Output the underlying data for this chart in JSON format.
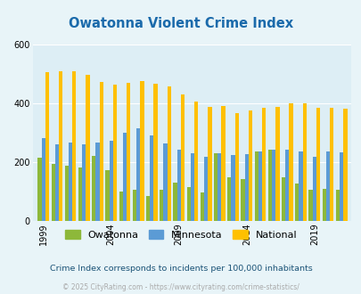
{
  "title": "Owatonna Violent Crime Index",
  "title_color": "#1a6aab",
  "subtitle": "Crime Index corresponds to incidents per 100,000 inhabitants",
  "footer": "© 2025 CityRating.com - https://www.cityrating.com/crime-statistics/",
  "years": [
    1999,
    2000,
    2001,
    2002,
    2003,
    2004,
    2005,
    2006,
    2007,
    2008,
    2009,
    2010,
    2011,
    2012,
    2013,
    2014,
    2015,
    2016,
    2017,
    2018,
    2019,
    2020,
    2021
  ],
  "owatonna": [
    215,
    192,
    185,
    180,
    220,
    170,
    100,
    105,
    83,
    105,
    130,
    115,
    95,
    230,
    148,
    140,
    235,
    240,
    148,
    127,
    105,
    108,
    105
  ],
  "minnesota": [
    280,
    260,
    265,
    260,
    265,
    270,
    300,
    315,
    290,
    263,
    242,
    230,
    218,
    228,
    222,
    225,
    235,
    240,
    240,
    235,
    217,
    235,
    232
  ],
  "national": [
    505,
    507,
    507,
    495,
    472,
    463,
    469,
    474,
    464,
    455,
    429,
    404,
    387,
    390,
    365,
    373,
    383,
    386,
    399,
    397,
    383,
    383,
    379
  ],
  "owatonna_color": "#8db83a",
  "minnesota_color": "#5b9bd5",
  "national_color": "#ffc000",
  "bg_color": "#ddeef5",
  "plot_bg_color": "#ddeef5",
  "outer_bg_color": "#e8f4f8",
  "ylim": [
    0,
    600
  ],
  "yticks": [
    0,
    200,
    400,
    600
  ],
  "bar_width": 0.28,
  "legend_labels": [
    "Owatonna",
    "Minnesota",
    "National"
  ],
  "subtitle_color": "#1a5276",
  "footer_color": "#aaaaaa",
  "tick_years": [
    1999,
    2004,
    2009,
    2014,
    2019
  ]
}
